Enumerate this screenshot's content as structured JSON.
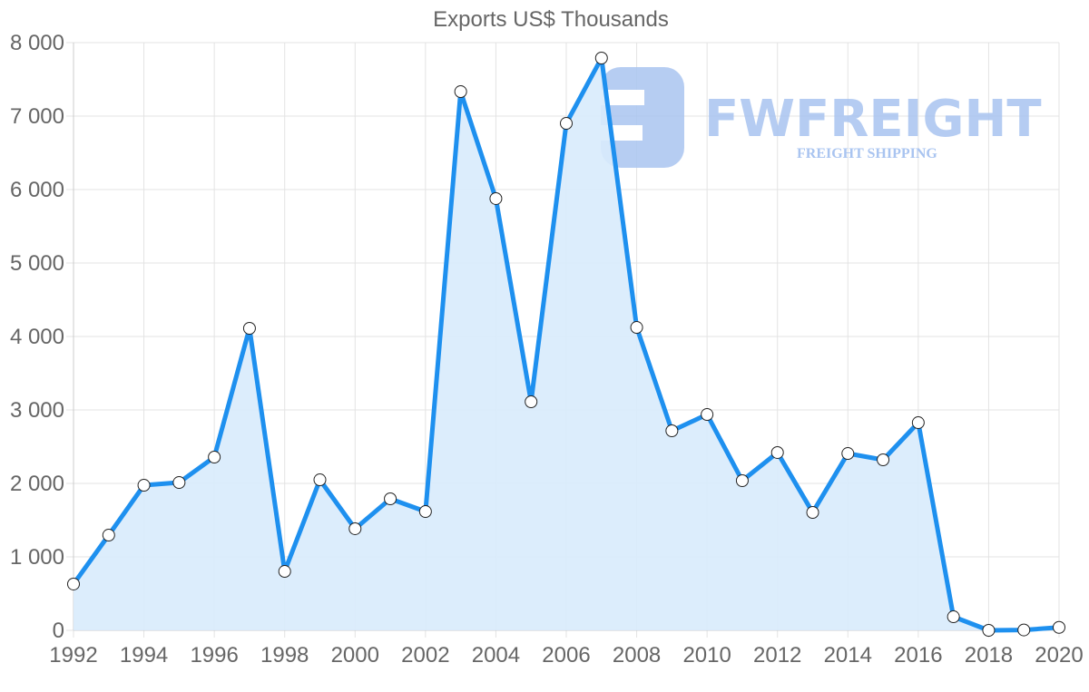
{
  "chart_data": {
    "type": "area",
    "title": "Exports US$ Thousands",
    "xlabel": "",
    "ylabel": "",
    "x": [
      1992,
      1993,
      1994,
      1995,
      1996,
      1997,
      1998,
      1999,
      2000,
      2001,
      2002,
      2003,
      2004,
      2005,
      2006,
      2007,
      2008,
      2009,
      2010,
      2011,
      2012,
      2013,
      2014,
      2015,
      2016,
      2017,
      2018,
      2019,
      2020
    ],
    "series": [
      {
        "name": "Exports US$ Thousands",
        "values": [
          630,
          1296,
          1975,
          2012,
          2358,
          4111,
          802,
          2049,
          1383,
          1790,
          1617,
          7333,
          5877,
          3111,
          6901,
          7790,
          4123,
          2716,
          2938,
          2037,
          2420,
          1605,
          2407,
          2321,
          2827,
          185,
          0,
          5,
          40
        ],
        "color": "#1e90ef",
        "fill": "#d8ebfc"
      }
    ],
    "ylim": [
      0,
      8000
    ],
    "xlim": [
      1992,
      2020
    ],
    "yticks": [
      "0",
      "1 000",
      "2 000",
      "3 000",
      "4 000",
      "5 000",
      "6 000",
      "7 000",
      "8 000"
    ],
    "xticks": [
      "1992",
      "1994",
      "1996",
      "1998",
      "2000",
      "2002",
      "2004",
      "2006",
      "2008",
      "2010",
      "2012",
      "2014",
      "2016",
      "2018",
      "2020"
    ],
    "grid": true,
    "legend": "none"
  },
  "watermark": {
    "brand": "FWFREIGHT",
    "tagline": "FREIGHT SHIPPING",
    "color": "#a9c4f0"
  }
}
